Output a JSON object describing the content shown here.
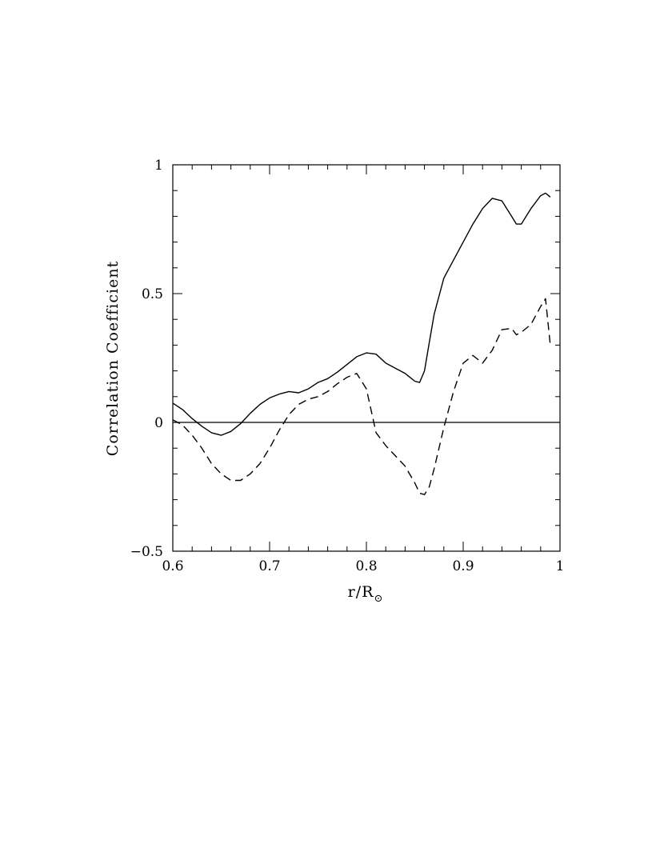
{
  "chart_data": {
    "type": "line",
    "xlabel": "r/R",
    "xlabel_subscript": "⊙",
    "ylabel": "Correlation Coefficient",
    "xlim": [
      0.6,
      1.0
    ],
    "ylim": [
      -0.5,
      1.0
    ],
    "x_ticks": [
      {
        "value": 0.6,
        "label": "0.6"
      },
      {
        "value": 0.7,
        "label": "0.7"
      },
      {
        "value": 0.8,
        "label": "0.8"
      },
      {
        "value": 0.9,
        "label": "0.9"
      },
      {
        "value": 1.0,
        "label": "1"
      }
    ],
    "y_ticks": [
      {
        "value": -0.5,
        "label": "−0.5"
      },
      {
        "value": 0.0,
        "label": "0"
      },
      {
        "value": 0.5,
        "label": "0.5"
      },
      {
        "value": 1.0,
        "label": "1"
      }
    ],
    "x_minor_step": 0.02,
    "y_minor_step": 0.1,
    "zero_line": true,
    "grid": false,
    "legend": "none",
    "series": [
      {
        "style": "solid",
        "x": [
          0.6,
          0.61,
          0.62,
          0.63,
          0.64,
          0.65,
          0.66,
          0.67,
          0.68,
          0.69,
          0.7,
          0.71,
          0.72,
          0.73,
          0.74,
          0.75,
          0.76,
          0.77,
          0.78,
          0.79,
          0.8,
          0.81,
          0.82,
          0.83,
          0.84,
          0.85,
          0.855,
          0.86,
          0.865,
          0.87,
          0.88,
          0.89,
          0.9,
          0.91,
          0.92,
          0.93,
          0.94,
          0.95,
          0.955,
          0.96,
          0.97,
          0.98,
          0.985,
          0.99
        ],
        "y": [
          0.075,
          0.05,
          0.015,
          -0.015,
          -0.04,
          -0.05,
          -0.035,
          -0.005,
          0.035,
          0.07,
          0.095,
          0.11,
          0.12,
          0.115,
          0.13,
          0.155,
          0.17,
          0.195,
          0.225,
          0.255,
          0.27,
          0.265,
          0.23,
          0.21,
          0.19,
          0.16,
          0.155,
          0.2,
          0.31,
          0.42,
          0.56,
          0.63,
          0.7,
          0.77,
          0.83,
          0.87,
          0.86,
          0.8,
          0.77,
          0.77,
          0.83,
          0.88,
          0.89,
          0.875
        ]
      },
      {
        "style": "dashed",
        "x": [
          0.6,
          0.61,
          0.62,
          0.63,
          0.64,
          0.65,
          0.66,
          0.67,
          0.68,
          0.69,
          0.7,
          0.71,
          0.72,
          0.73,
          0.74,
          0.75,
          0.76,
          0.77,
          0.78,
          0.79,
          0.8,
          0.81,
          0.82,
          0.83,
          0.84,
          0.85,
          0.855,
          0.86,
          0.865,
          0.87,
          0.88,
          0.89,
          0.9,
          0.91,
          0.92,
          0.93,
          0.94,
          0.95,
          0.955,
          0.96,
          0.97,
          0.98,
          0.985,
          0.99
        ],
        "y": [
          0.01,
          -0.01,
          -0.05,
          -0.1,
          -0.16,
          -0.2,
          -0.225,
          -0.225,
          -0.2,
          -0.16,
          -0.1,
          -0.03,
          0.03,
          0.07,
          0.09,
          0.1,
          0.12,
          0.15,
          0.175,
          0.19,
          0.13,
          -0.04,
          -0.09,
          -0.13,
          -0.17,
          -0.235,
          -0.275,
          -0.28,
          -0.25,
          -0.18,
          -0.02,
          0.12,
          0.23,
          0.26,
          0.23,
          0.28,
          0.36,
          0.365,
          0.34,
          0.35,
          0.38,
          0.45,
          0.48,
          0.3
        ]
      }
    ]
  }
}
